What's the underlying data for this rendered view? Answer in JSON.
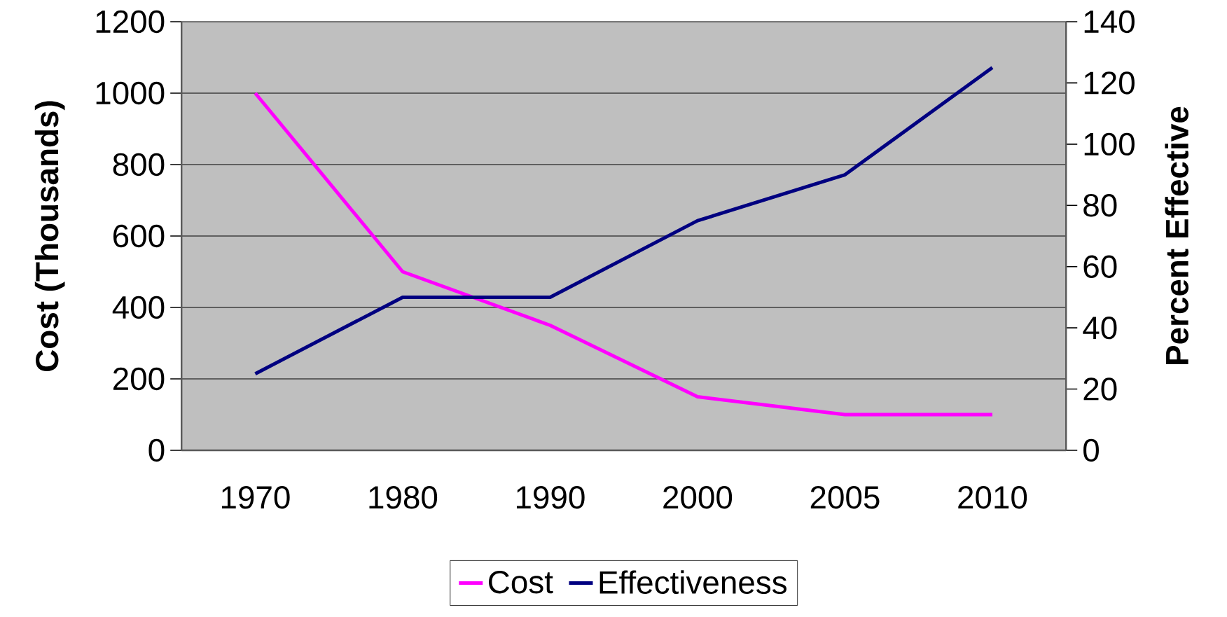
{
  "chart_data": {
    "type": "line",
    "categories": [
      "1970",
      "1980",
      "1990",
      "2000",
      "2005",
      "2010"
    ],
    "ylabel": "Cost (Thousands)",
    "y2label": "Percent Effective",
    "series": [
      {
        "name": "Cost",
        "color": "#ff00ff",
        "values": [
          1000,
          500,
          350,
          150,
          100,
          100
        ]
      },
      {
        "name": "Effectiveness",
        "color": "#000080",
        "values": [
          25,
          50,
          50,
          75,
          90,
          125
        ],
        "axis": "y2"
      }
    ],
    "ylim": [
      0,
      1200
    ],
    "yticks": [
      0,
      200,
      400,
      600,
      800,
      1000,
      1200
    ],
    "y2lim": [
      0,
      140
    ],
    "y2ticks": [
      0,
      20,
      40,
      60,
      80,
      100,
      120,
      140
    ],
    "grid": "y",
    "legend": "bottom",
    "marker": "none",
    "line_style": "solid"
  }
}
